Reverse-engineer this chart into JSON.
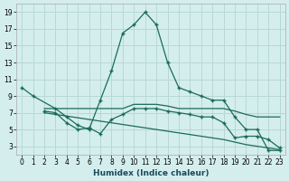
{
  "xlabel": "Humidex (Indice chaleur)",
  "bg_color": "#d4eeed",
  "grid_color": "#b8d8d4",
  "line_color": "#1a6b5a",
  "line1_x": [
    0,
    1,
    2,
    3,
    4,
    5,
    6,
    7,
    8,
    9,
    10,
    11,
    12,
    13,
    14,
    15,
    16,
    17,
    18,
    19,
    20,
    21,
    22,
    23
  ],
  "line1_y": [
    10,
    9,
    null,
    null,
    null,
    null,
    null,
    null,
    null,
    null,
    null,
    null,
    null,
    null,
    null,
    null,
    null,
    null,
    null,
    null,
    null,
    null,
    null,
    null
  ],
  "xlim": [
    -0.5,
    23.5
  ],
  "ylim": [
    2,
    20
  ],
  "yticks": [
    3,
    5,
    7,
    9,
    11,
    13,
    15,
    17,
    19
  ],
  "xticks": [
    0,
    1,
    2,
    3,
    4,
    5,
    6,
    7,
    8,
    9,
    10,
    11,
    12,
    13,
    14,
    15,
    16,
    17,
    18,
    19,
    20,
    21,
    22,
    23
  ],
  "curve1_x": [
    0,
    1,
    3,
    4,
    5,
    6,
    7,
    8,
    9,
    10,
    11,
    12,
    13,
    14,
    15,
    16,
    17,
    18,
    19,
    20,
    21,
    22,
    23
  ],
  "curve1_y": [
    10,
    9,
    7.5,
    6.5,
    5.5,
    5.0,
    8.5,
    12,
    16.5,
    17.5,
    19,
    17.5,
    13,
    10,
    9.5,
    9,
    8.5,
    8.5,
    6.5,
    5,
    5,
    2.5,
    2.5
  ],
  "curve2_x": [
    2,
    3,
    4,
    5,
    6,
    7,
    8,
    9,
    10,
    11,
    12,
    13,
    14,
    15,
    16,
    17,
    18,
    19,
    20,
    21,
    22,
    23
  ],
  "curve2_y": [
    7.5,
    7.5,
    7.5,
    7.5,
    7.5,
    7.5,
    7.5,
    7.5,
    8.0,
    8.0,
    8.0,
    7.8,
    7.5,
    7.5,
    7.5,
    7.5,
    7.5,
    7.2,
    6.8,
    6.5,
    6.5,
    6.5
  ],
  "curve3_x": [
    2,
    3,
    4,
    5,
    6,
    7,
    8,
    9,
    10,
    11,
    12,
    13,
    14,
    15,
    16,
    17,
    18,
    19,
    20,
    21,
    22,
    23
  ],
  "curve3_y": [
    7.2,
    7.0,
    5.8,
    5.0,
    5.2,
    4.5,
    6.2,
    6.8,
    7.5,
    7.5,
    7.5,
    7.2,
    7.0,
    6.8,
    6.5,
    6.5,
    5.8,
    4.0,
    4.2,
    4.2,
    3.8,
    2.8
  ],
  "curve4_x": [
    2,
    3,
    4,
    5,
    6,
    7,
    8,
    9,
    10,
    11,
    12,
    13,
    14,
    15,
    16,
    17,
    18,
    19,
    20,
    21,
    22,
    23
  ],
  "curve4_y": [
    7.0,
    6.8,
    6.6,
    6.4,
    6.2,
    6.0,
    5.8,
    5.6,
    5.4,
    5.2,
    5.0,
    4.8,
    4.6,
    4.4,
    4.2,
    4.0,
    3.8,
    3.5,
    3.2,
    3.0,
    2.8,
    2.6
  ]
}
